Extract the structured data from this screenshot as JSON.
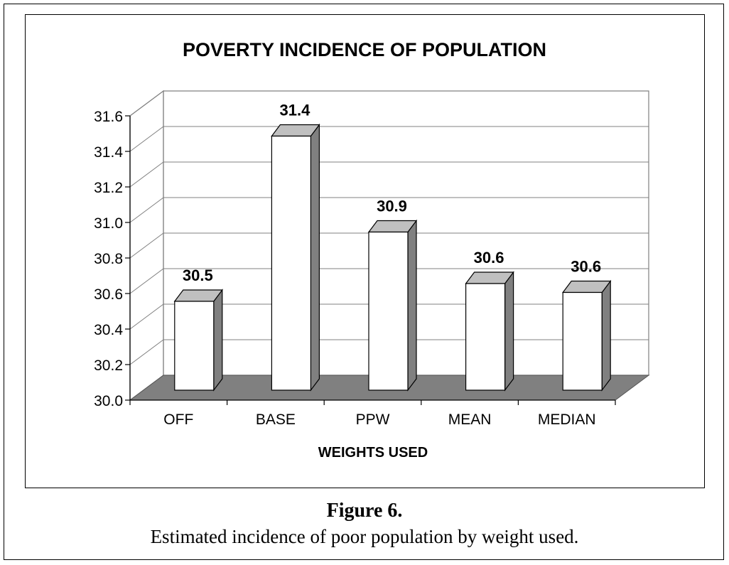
{
  "chart_data": {
    "type": "bar",
    "title": "POVERTY INCIDENCE OF POPULATION",
    "xlabel": "WEIGHTS USED",
    "ylabel": "",
    "categories": [
      "OFF",
      "BASE",
      "PPW",
      "MEAN",
      "MEDIAN"
    ],
    "values": [
      30.5,
      31.43,
      30.89,
      30.6,
      30.55
    ],
    "data_labels": [
      "30.5",
      "31.4",
      "30.9",
      "30.6",
      "30.6"
    ],
    "ylim": [
      30.0,
      31.6
    ],
    "yticks": [
      "30.0",
      "30.2",
      "30.4",
      "30.6",
      "30.8",
      "31.0",
      "31.2",
      "31.4",
      "31.6"
    ],
    "grid": true,
    "legend": "none",
    "style": "3d",
    "colors": {
      "bar_face": "#ffffff",
      "bar_top": "#c0c0c0",
      "bar_side": "#808080",
      "floor": "#808080"
    }
  },
  "caption": {
    "label": "Figure 6.",
    "text": "Estimated incidence of poor population by weight used."
  }
}
